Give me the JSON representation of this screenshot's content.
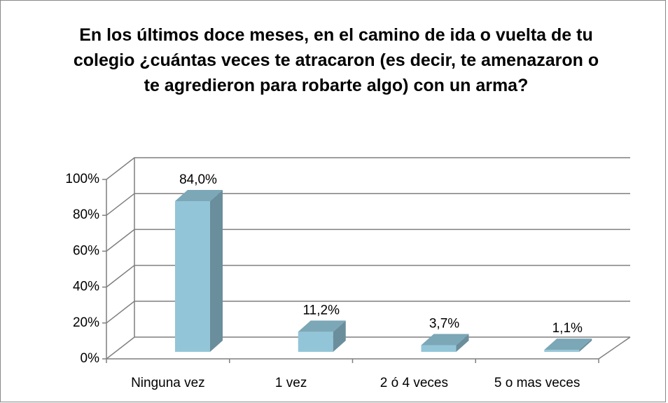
{
  "chart_data": {
    "type": "bar3d",
    "title": "En los últimos doce meses, en el camino de ida o vuelta de tu colegio ¿cuántas veces te atracaron (es decir, te amenazaron o te agredieron para robarte algo) con un arma?",
    "categories": [
      "Ninguna vez",
      "1 vez",
      "2 ó 4 veces",
      "5 o mas veces"
    ],
    "values": [
      84.0,
      11.2,
      3.7,
      1.1
    ],
    "value_labels": [
      "84,0%",
      "11,2%",
      "3,7%",
      "1,1%"
    ],
    "color": "#93c5d8",
    "ylim": [
      0,
      100
    ],
    "yticks": [
      {
        "value": 0,
        "label": "0%"
      },
      {
        "value": 20,
        "label": "20%"
      },
      {
        "value": 40,
        "label": "40%"
      },
      {
        "value": 60,
        "label": "60%"
      },
      {
        "value": 80,
        "label": "80%"
      },
      {
        "value": 100,
        "label": "100%"
      }
    ],
    "grid": true
  }
}
